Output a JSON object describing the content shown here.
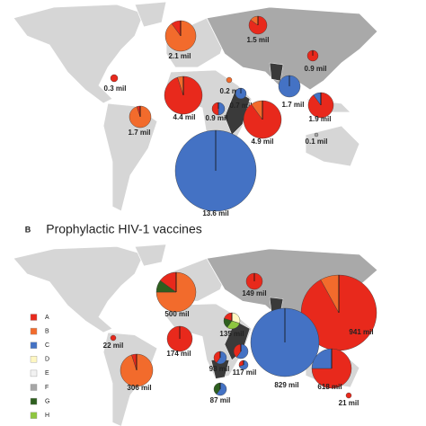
{
  "panels": [
    {
      "labels": [
        "2.1 mil",
        "1.5 mil",
        "0.9 mil",
        "0.3 mil",
        "0.2 mil",
        "4.4 mil",
        "0.7 mil",
        "0.9 mil",
        "1.7 mil",
        "1.9 mil",
        "1.7 mil",
        "4.9 mil",
        "0.1 mil",
        "13.6 mil"
      ]
    },
    {
      "letter": "B",
      "title": "Prophylactic HIV-1 vaccines",
      "labels": [
        "500 mil",
        "149 mil",
        "941 mil",
        "22 mil",
        "135 mil",
        "174 mil",
        "829 mil",
        "98 mil",
        "117 mil",
        "618 mil",
        "306 mil",
        "87 mil",
        "21 mil"
      ]
    }
  ],
  "legend": [
    {
      "name": "A",
      "color": "#e8291c"
    },
    {
      "name": "B",
      "color": "#f26b2c"
    },
    {
      "name": "C",
      "color": "#4472c4"
    },
    {
      "name": "D",
      "color": "#fff7c2"
    },
    {
      "name": "E",
      "color": "#f2f2f2"
    },
    {
      "name": "F",
      "color": "#a6a6a6"
    },
    {
      "name": "G",
      "color": "#2e5f1f"
    },
    {
      "name": "H",
      "color": "#8ec63f"
    }
  ]
}
